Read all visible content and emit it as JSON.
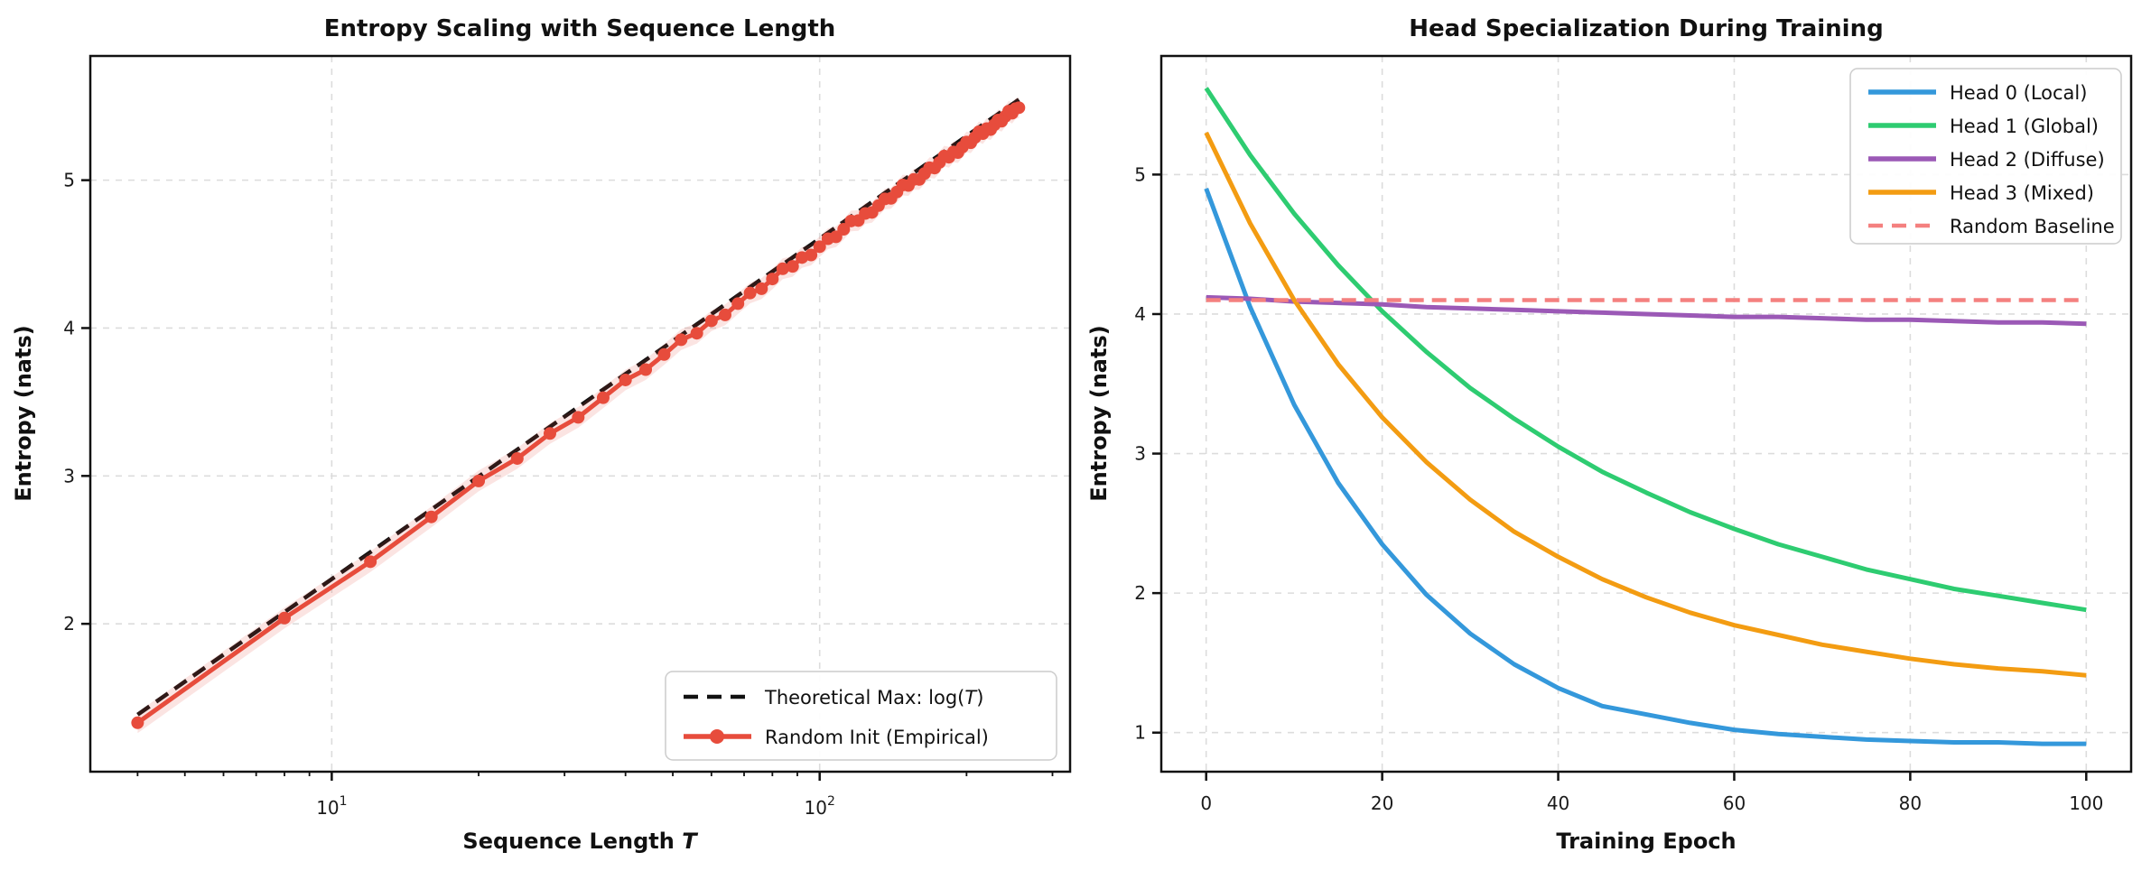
{
  "figure": {
    "background": "#ffffff",
    "grid_color": "#dcdcdc",
    "spine_color": "#111111"
  },
  "chart_data": [
    {
      "type": "line",
      "title": "Entropy Scaling with Sequence Length",
      "xlabel": "Sequence Length T",
      "xlabel_prefix": "Sequence Length ",
      "xlabel_var": "T",
      "ylabel": "Entropy (nats)",
      "xscale": "log",
      "xlim": [
        3.2,
        326
      ],
      "ylim": [
        1.0,
        5.84
      ],
      "grid": true,
      "legend_position": "lower right",
      "x_major_ticks": [
        {
          "value": 10,
          "base": "10",
          "sup": "1"
        },
        {
          "value": 100,
          "base": "10",
          "sup": "2"
        }
      ],
      "x_minor_ticks": [
        4,
        5,
        6,
        7,
        8,
        9,
        20,
        30,
        40,
        50,
        60,
        70,
        80,
        90,
        200,
        300
      ],
      "y_ticks": [
        2,
        3,
        4,
        5
      ],
      "T": [
        4,
        8,
        12,
        16,
        20,
        24,
        28,
        32,
        36,
        40,
        44,
        48,
        52,
        56,
        60,
        64,
        68,
        72,
        76,
        80,
        84,
        88,
        92,
        96,
        100,
        104,
        108,
        112,
        116,
        120,
        124,
        128,
        132,
        136,
        140,
        144,
        148,
        152,
        156,
        160,
        164,
        168,
        172,
        176,
        180,
        184,
        188,
        192,
        196,
        200,
        204,
        208,
        212,
        216,
        220,
        224,
        228,
        232,
        236,
        240,
        244,
        248,
        252,
        256
      ],
      "series": [
        {
          "name": "Theoretical Max: log(T)",
          "rich": [
            [
              "Theoretical Max: log(",
              0
            ],
            [
              "T",
              1
            ],
            [
              ")",
              0
            ]
          ],
          "color": "#111111",
          "style": "dashed",
          "values": [
            1.386,
            2.079,
            2.485,
            2.773,
            2.996,
            3.178,
            3.332,
            3.466,
            3.584,
            3.689,
            3.784,
            3.871,
            3.951,
            4.025,
            4.094,
            4.159,
            4.22,
            4.277,
            4.331,
            4.382,
            4.431,
            4.477,
            4.522,
            4.564,
            4.605,
            4.644,
            4.682,
            4.718,
            4.754,
            4.787,
            4.82,
            4.852,
            4.883,
            4.913,
            4.942,
            4.97,
            4.997,
            5.024,
            5.05,
            5.075,
            5.1,
            5.124,
            5.147,
            5.17,
            5.193,
            5.215,
            5.236,
            5.257,
            5.278,
            5.298,
            5.318,
            5.338,
            5.357,
            5.375,
            5.394,
            5.412,
            5.429,
            5.447,
            5.464,
            5.481,
            5.497,
            5.513,
            5.529,
            5.545
          ]
        },
        {
          "name": "Random Init (Empirical)",
          "rich": [
            [
              "Random Init (Empirical)",
              0
            ]
          ],
          "color": "#e74c3c",
          "style": "solid-marker",
          "band_halfwidth": 0.07,
          "band_opacity": 0.15,
          "values": [
            1.331,
            2.039,
            2.42,
            2.723,
            2.966,
            3.118,
            3.287,
            3.396,
            3.529,
            3.649,
            3.719,
            3.821,
            3.921,
            3.965,
            4.049,
            4.089,
            4.165,
            4.237,
            4.266,
            4.332,
            4.401,
            4.417,
            4.477,
            4.494,
            4.55,
            4.604,
            4.617,
            4.668,
            4.724,
            4.727,
            4.775,
            4.782,
            4.828,
            4.873,
            4.877,
            4.92,
            4.967,
            4.964,
            5.005,
            5.005,
            5.045,
            5.084,
            5.082,
            5.12,
            5.163,
            5.155,
            5.191,
            5.187,
            5.223,
            5.258,
            5.253,
            5.288,
            5.327,
            5.315,
            5.349,
            5.342,
            5.374,
            5.407,
            5.399,
            5.431,
            5.467,
            5.453,
            5.484,
            5.49
          ]
        }
      ]
    },
    {
      "type": "line",
      "title": "Head Specialization During Training",
      "xlabel": "Training Epoch",
      "ylabel": "Entropy (nats)",
      "xscale": "linear",
      "xlim": [
        -5.1,
        105.1
      ],
      "ylim": [
        0.72,
        5.85
      ],
      "grid": true,
      "legend_position": "upper right",
      "x_ticks": [
        0,
        20,
        40,
        60,
        80,
        100
      ],
      "y_ticks": [
        1,
        2,
        3,
        4,
        5
      ],
      "epochs": [
        0,
        5,
        10,
        15,
        20,
        25,
        30,
        35,
        40,
        45,
        50,
        55,
        60,
        65,
        70,
        75,
        80,
        85,
        90,
        95,
        100
      ],
      "series": [
        {
          "name": "Head 0 (Local)",
          "rich": [
            [
              "Head 0 (Local)",
              0
            ]
          ],
          "color": "#3498db",
          "style": "solid",
          "values": [
            4.9,
            4.05,
            3.35,
            2.79,
            2.35,
            1.99,
            1.71,
            1.49,
            1.32,
            1.19,
            1.13,
            1.07,
            1.02,
            0.99,
            0.97,
            0.95,
            0.94,
            0.93,
            0.93,
            0.92,
            0.92
          ]
        },
        {
          "name": "Head 1 (Global)",
          "rich": [
            [
              "Head 1 (Global)",
              0
            ]
          ],
          "color": "#2ecc71",
          "style": "solid",
          "values": [
            5.62,
            5.14,
            4.72,
            4.35,
            4.02,
            3.73,
            3.47,
            3.25,
            3.05,
            2.87,
            2.72,
            2.58,
            2.46,
            2.35,
            2.26,
            2.17,
            2.1,
            2.03,
            1.98,
            1.93,
            1.88
          ]
        },
        {
          "name": "Head 2 (Diffuse)",
          "rich": [
            [
              "Head 2 (Diffuse)",
              0
            ]
          ],
          "color": "#9b59b6",
          "style": "solid",
          "values": [
            4.12,
            4.11,
            4.09,
            4.08,
            4.07,
            4.05,
            4.04,
            4.03,
            4.02,
            4.01,
            4.0,
            3.99,
            3.98,
            3.98,
            3.97,
            3.96,
            3.96,
            3.95,
            3.94,
            3.94,
            3.93
          ]
        },
        {
          "name": "Head 3 (Mixed)",
          "rich": [
            [
              "Head 3 (Mixed)",
              0
            ]
          ],
          "color": "#f39c12",
          "style": "solid",
          "values": [
            5.3,
            4.65,
            4.1,
            3.64,
            3.26,
            2.94,
            2.67,
            2.44,
            2.26,
            2.1,
            1.97,
            1.86,
            1.77,
            1.7,
            1.63,
            1.58,
            1.53,
            1.49,
            1.46,
            1.44,
            1.41
          ]
        },
        {
          "name": "Random Baseline",
          "rich": [
            [
              "Random Baseline",
              0
            ]
          ],
          "color": "#f4807f",
          "style": "dashed",
          "values": [
            4.1,
            4.1,
            4.1,
            4.1,
            4.1,
            4.1,
            4.1,
            4.1,
            4.1,
            4.1,
            4.1,
            4.1,
            4.1,
            4.1,
            4.1,
            4.1,
            4.1,
            4.1,
            4.1,
            4.1,
            4.1
          ]
        }
      ]
    }
  ]
}
